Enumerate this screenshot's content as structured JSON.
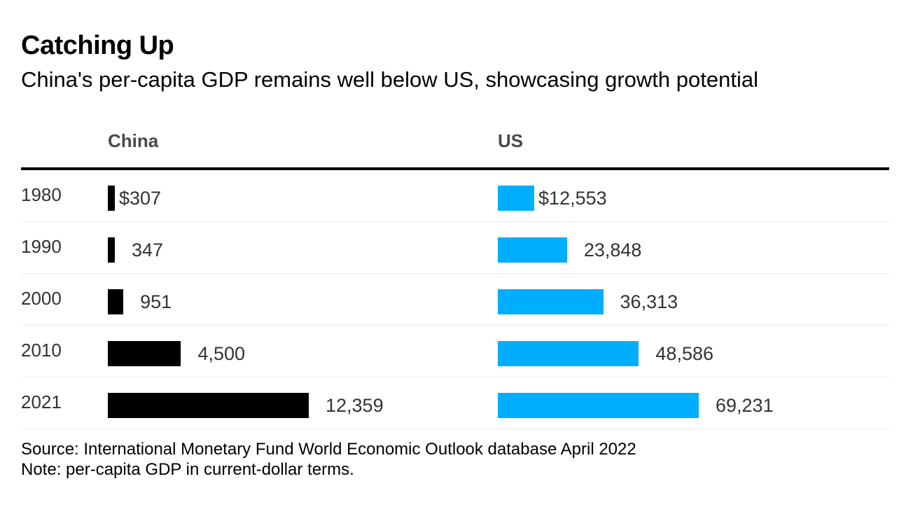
{
  "header": {
    "title": "Catching Up",
    "subtitle": "China's per-capita GDP remains well below US, showcasing growth potential"
  },
  "footer": {
    "source": "Source: International Monetary Fund World Economic Outlook database April 2022",
    "note": "Note: per-capita GDP in current-dollar terms."
  },
  "chart_data": {
    "type": "bar",
    "orientation": "horizontal",
    "categories": [
      "1980",
      "1990",
      "2000",
      "2010",
      "2021"
    ],
    "series": [
      {
        "name": "China",
        "values": [
          307,
          347,
          951,
          4500,
          12359
        ],
        "labels": [
          "$307",
          "347",
          "951",
          "4,500",
          "12,359"
        ],
        "color": "#000000"
      },
      {
        "name": "US",
        "values": [
          12553,
          23848,
          36313,
          48586,
          69231
        ],
        "labels": [
          "$12,553",
          "23,848",
          "36,313",
          "48,586",
          "69,231"
        ],
        "color": "#00aeff"
      }
    ],
    "legend": "column headers"
  }
}
